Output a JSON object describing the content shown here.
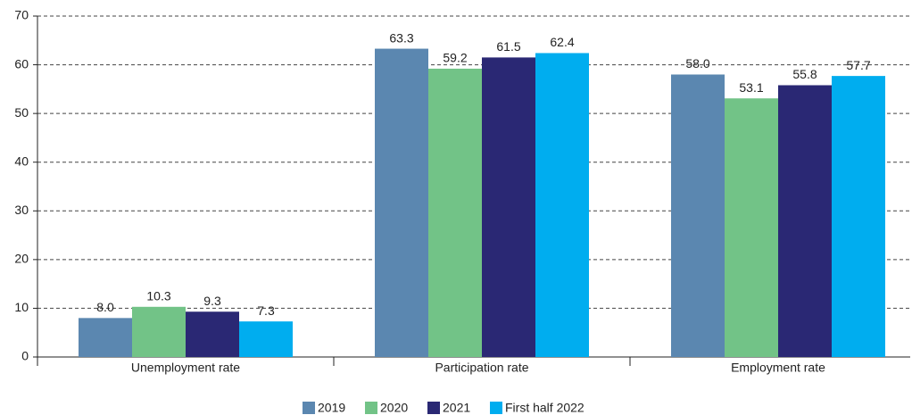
{
  "chart_data": {
    "type": "bar",
    "categories": [
      "Unemployment rate",
      "Participation rate",
      "Employment rate"
    ],
    "series": [
      {
        "name": "2019",
        "color": "#5b87b0",
        "values": [
          8,
          63.3,
          58
        ],
        "value_labels": [
          "8.0",
          "63.3",
          "58.0"
        ]
      },
      {
        "name": "2020",
        "color": "#72c387",
        "values": [
          10.3,
          59.2,
          53.1
        ],
        "value_labels": [
          "10.3",
          "59.2",
          "53.1"
        ]
      },
      {
        "name": "2021",
        "color": "#2a2874",
        "values": [
          9.3,
          61.5,
          55.8
        ],
        "value_labels": [
          "9.3",
          "61.5",
          "55.8"
        ]
      },
      {
        "name": "First half 2022",
        "color": "#00adef",
        "values": [
          7.3,
          62.4,
          57.7
        ],
        "value_labels": [
          "7.3",
          "62.4",
          "57.7"
        ]
      }
    ],
    "ylim": [
      0,
      70
    ],
    "yticks": [
      0,
      10,
      20,
      30,
      40,
      50,
      60,
      70
    ],
    "grid": true
  }
}
